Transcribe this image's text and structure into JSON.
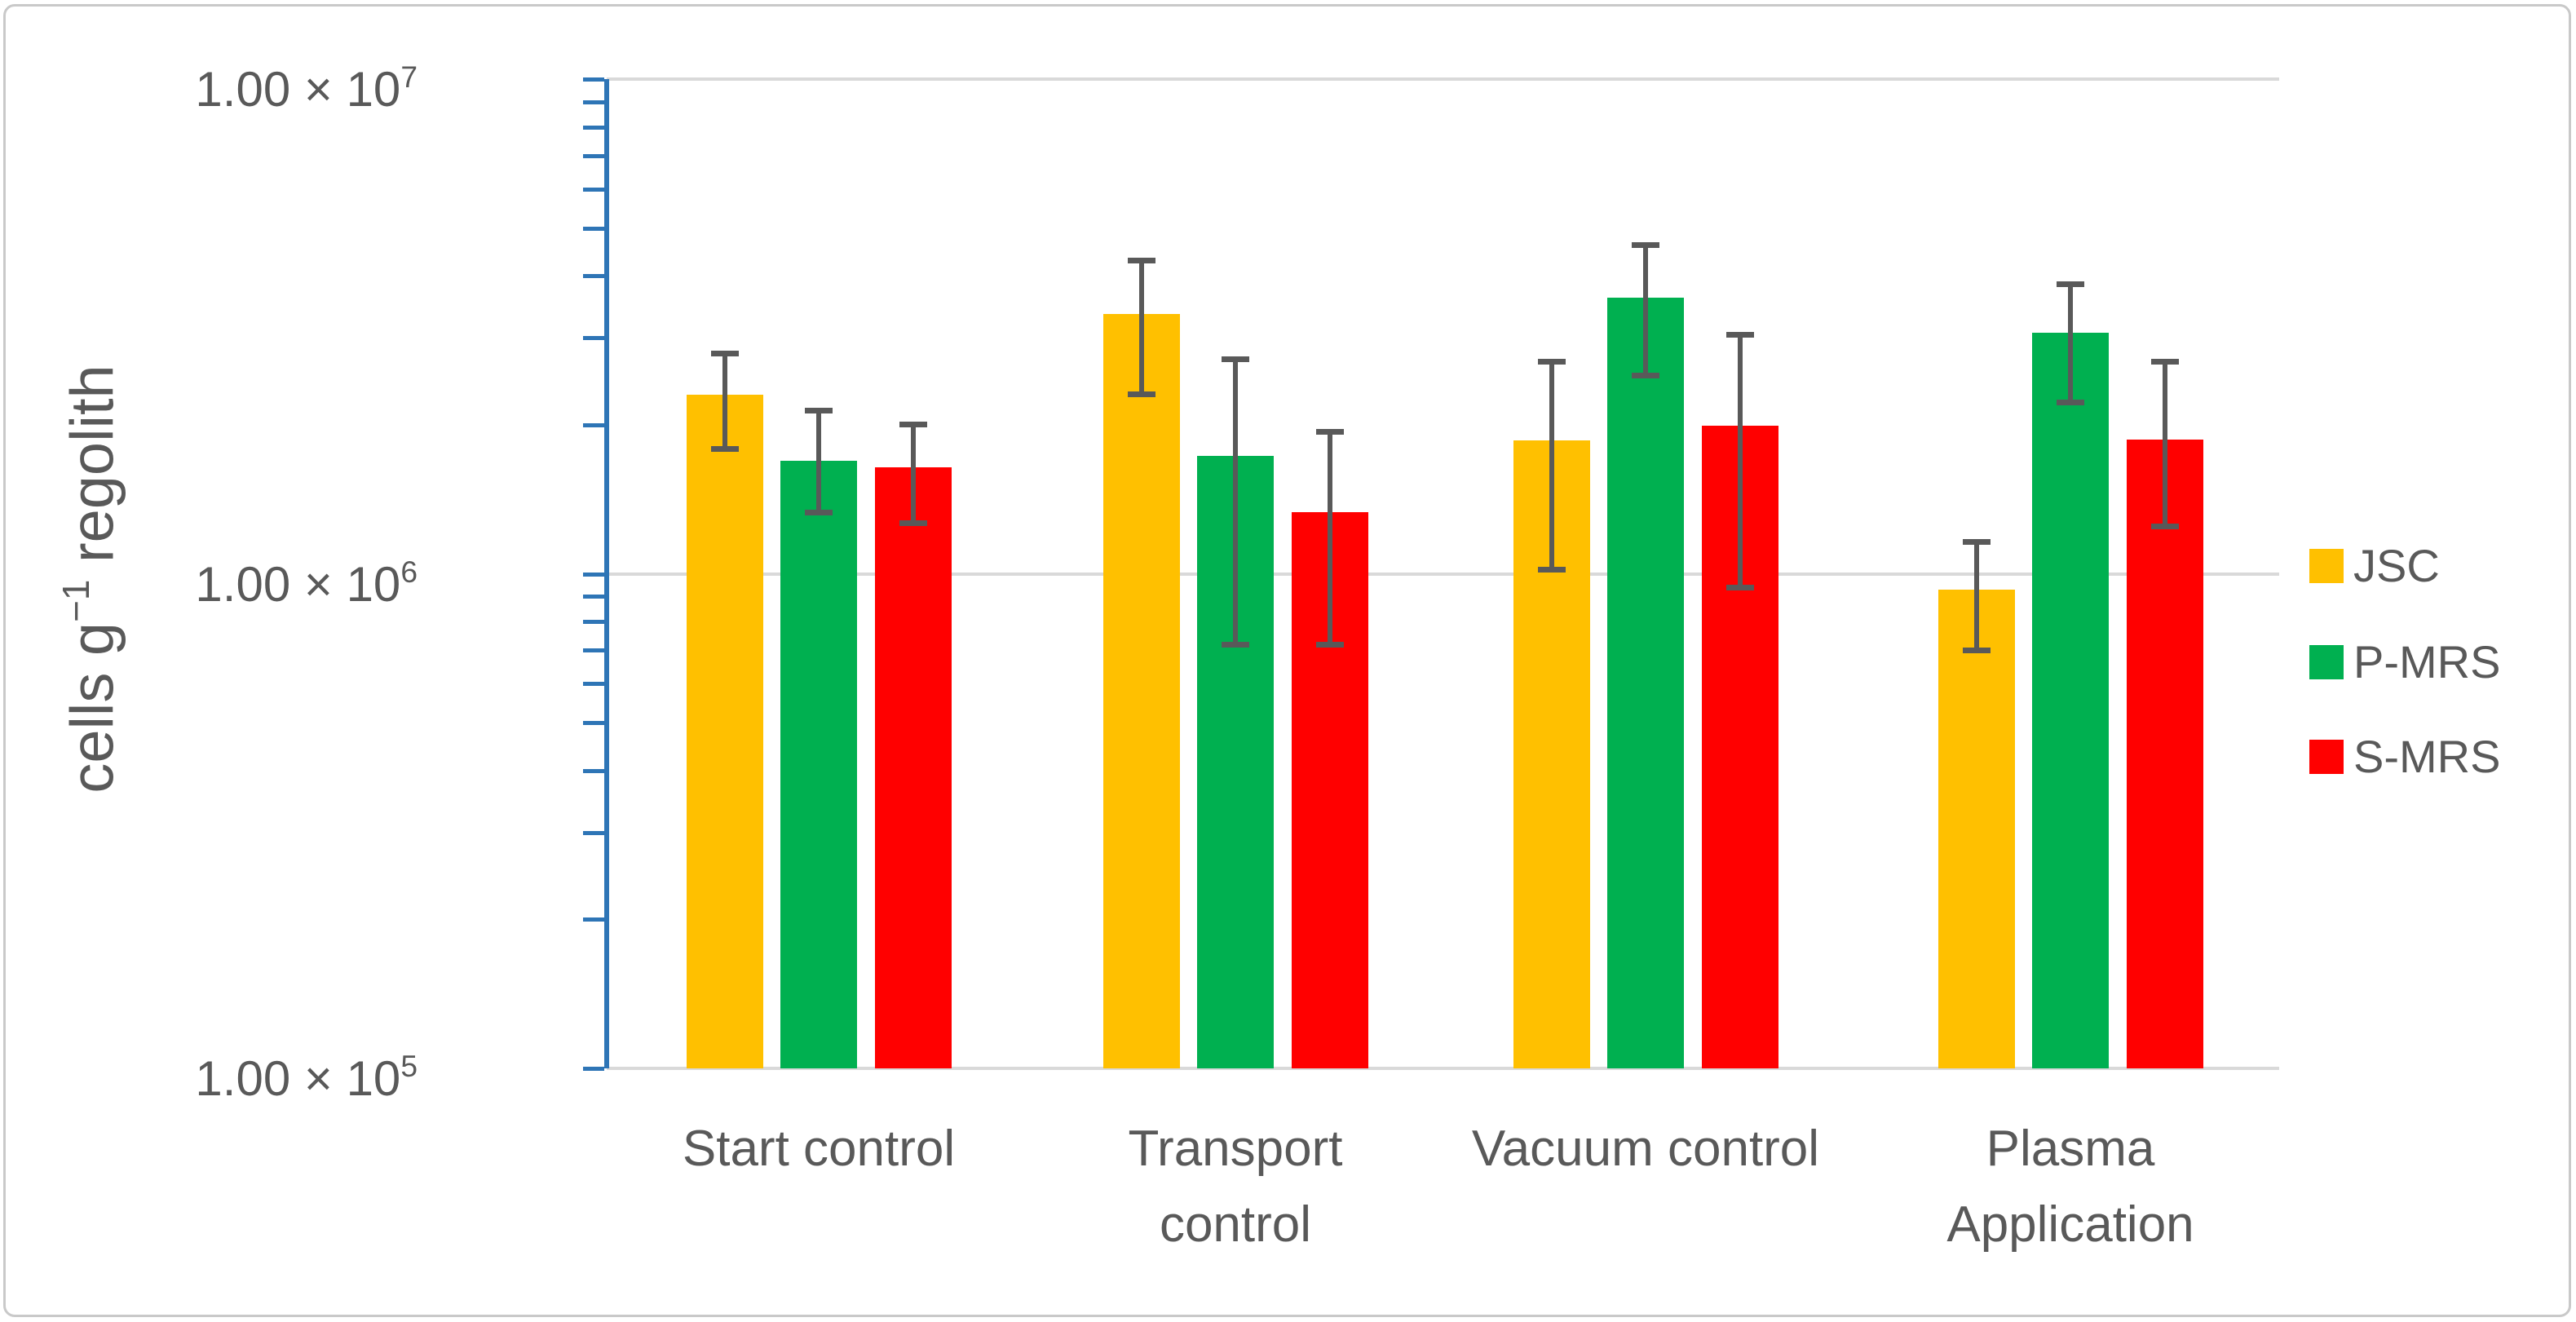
{
  "figure": {
    "border_color": "#c9c9c9",
    "background_color": "#ffffff"
  },
  "chart_data": {
    "type": "bar",
    "scale": "log10",
    "title": "",
    "xlabel": "",
    "ylabel": {
      "pre": "cells g",
      "sup": "−1",
      "post": " regolith"
    },
    "ylim": [
      100000,
      10000000
    ],
    "grid": "horizontal-major",
    "legend_position": "right",
    "y_ticks": [
      {
        "value": 100000,
        "label_mantissa": "1.00 × 10",
        "label_exp": "5"
      },
      {
        "value": 1000000,
        "label_mantissa": "1.00 × 10",
        "label_exp": "6"
      },
      {
        "value": 10000000,
        "label_mantissa": "1.00 × 10",
        "label_exp": "7"
      }
    ],
    "categories": [
      "Start control",
      "Transport control",
      "Vacuum control",
      "Plasma Application"
    ],
    "category_label_lines": [
      [
        "Start control"
      ],
      [
        "Transport",
        "control"
      ],
      [
        "Vacuum control"
      ],
      [
        "Plasma",
        "Application"
      ]
    ],
    "series": [
      {
        "name": "JSC",
        "color": "#FFC000",
        "values": [
          2300000,
          3350000,
          1860000,
          930000
        ],
        "err_low": [
          1790000,
          2310000,
          1020000,
          700000
        ],
        "err_high": [
          2790000,
          4310000,
          2690000,
          1160000
        ]
      },
      {
        "name": "P-MRS",
        "color": "#00B050",
        "values": [
          1690000,
          1730000,
          3610000,
          3070000
        ],
        "err_low": [
          1330000,
          720000,
          2520000,
          2220000
        ],
        "err_high": [
          2140000,
          2720000,
          4630000,
          3860000
        ]
      },
      {
        "name": "S-MRS",
        "color": "#FF0000",
        "values": [
          1640000,
          1330000,
          1990000,
          1870000
        ],
        "err_low": [
          1270000,
          720000,
          940000,
          1250000
        ],
        "err_high": [
          2010000,
          1940000,
          3050000,
          2690000
        ]
      }
    ],
    "colors": {
      "axis": "#2E75B6",
      "gridline": "#D9D9D9",
      "error_bar": "#595959",
      "text": "#595959"
    }
  }
}
